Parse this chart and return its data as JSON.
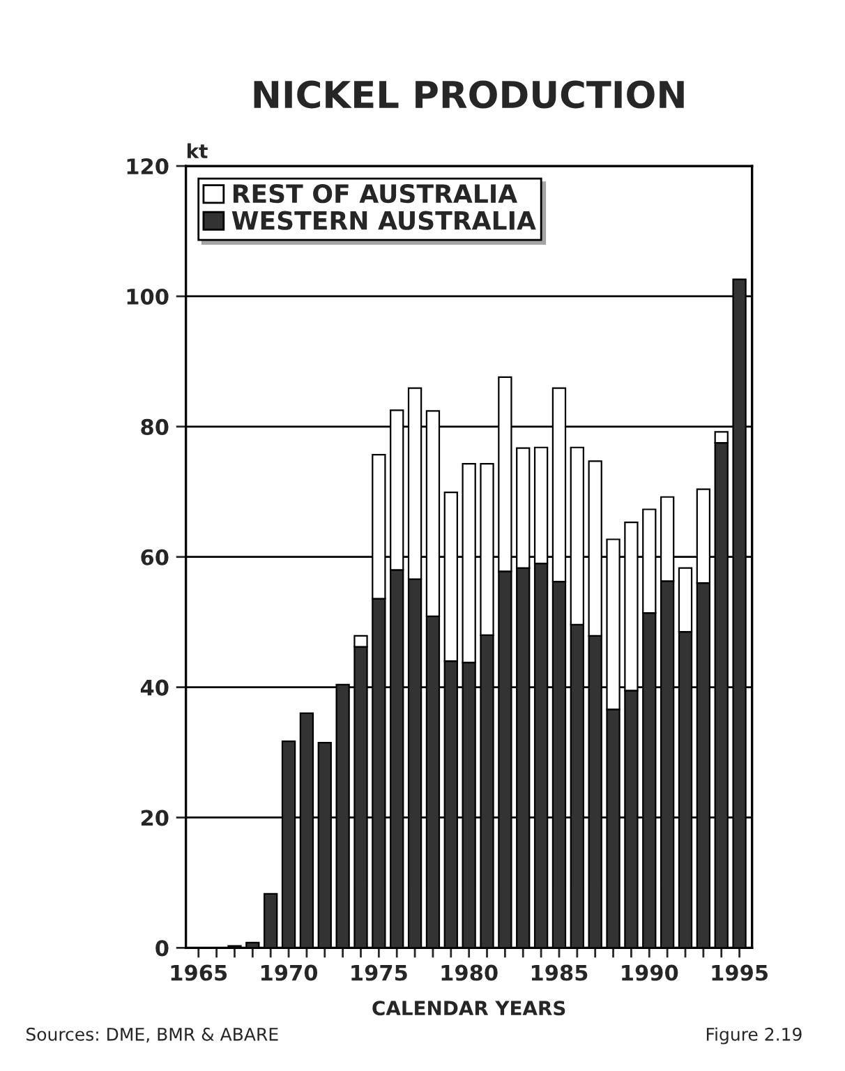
{
  "chart_data": {
    "type": "bar",
    "title": "NICKEL PRODUCTION",
    "xlabel": "CALENDAR YEARS",
    "ylabel": "kt",
    "x": [
      1967,
      1968,
      1969,
      1970,
      1971,
      1972,
      1973,
      1974,
      1975,
      1976,
      1977,
      1978,
      1979,
      1980,
      1981,
      1982,
      1983,
      1984,
      1985,
      1986,
      1987,
      1988,
      1989,
      1990,
      1991,
      1992,
      1993,
      1994,
      1995
    ],
    "stacked": true,
    "series": [
      {
        "name": "WESTERN AUSTRALIA",
        "color": "#333333",
        "values": [
          0.3,
          0.8,
          8.3,
          31.7,
          36,
          31.5,
          40.4,
          46.2,
          53.6,
          58,
          56.6,
          50.9,
          44,
          43.8,
          48,
          57.8,
          58.3,
          59,
          56.2,
          49.6,
          47.9,
          36.6,
          39.5,
          51.4,
          56.3,
          48.5,
          56,
          77.5,
          102.6
        ]
      },
      {
        "name": "REST OF AUSTRALIA",
        "color": "#ffffff",
        "values": [
          null,
          null,
          null,
          null,
          null,
          null,
          null,
          1.7,
          22.1,
          24.5,
          29.3,
          31.5,
          25.9,
          30.5,
          26.3,
          29.8,
          18.4,
          17.8,
          29.7,
          27.2,
          26.8,
          26.1,
          25.8,
          15.9,
          12.9,
          9.8,
          14.4,
          1.7,
          null
        ]
      }
    ],
    "xlim": [
      1964.3,
      1995.7
    ],
    "xticks": [
      {
        "value": 1965,
        "label": "1965"
      },
      {
        "value": 1966,
        "label": null
      },
      {
        "value": 1967,
        "label": null
      },
      {
        "value": 1968,
        "label": null
      },
      {
        "value": 1969,
        "label": null
      },
      {
        "value": 1970,
        "label": "1970"
      },
      {
        "value": 1971,
        "label": null
      },
      {
        "value": 1972,
        "label": null
      },
      {
        "value": 1973,
        "label": null
      },
      {
        "value": 1974,
        "label": null
      },
      {
        "value": 1975,
        "label": "1975"
      },
      {
        "value": 1976,
        "label": null
      },
      {
        "value": 1977,
        "label": null
      },
      {
        "value": 1978,
        "label": null
      },
      {
        "value": 1979,
        "label": null
      },
      {
        "value": 1980,
        "label": "1980"
      },
      {
        "value": 1981,
        "label": null
      },
      {
        "value": 1982,
        "label": null
      },
      {
        "value": 1983,
        "label": null
      },
      {
        "value": 1984,
        "label": null
      },
      {
        "value": 1985,
        "label": "1985"
      },
      {
        "value": 1986,
        "label": null
      },
      {
        "value": 1987,
        "label": null
      },
      {
        "value": 1988,
        "label": null
      },
      {
        "value": 1989,
        "label": null
      },
      {
        "value": 1990,
        "label": "1990"
      },
      {
        "value": 1991,
        "label": null
      },
      {
        "value": 1992,
        "label": null
      },
      {
        "value": 1993,
        "label": null
      },
      {
        "value": 1994,
        "label": null
      },
      {
        "value": 1995,
        "label": "1995"
      }
    ],
    "ylim": [
      0,
      120
    ],
    "yticks": [
      0,
      20,
      40,
      60,
      80,
      100,
      120
    ],
    "grid": "y",
    "legend": "top left",
    "annotations": [
      "Sources: DME, BMR & ABARE",
      "Figure 2.19"
    ]
  }
}
